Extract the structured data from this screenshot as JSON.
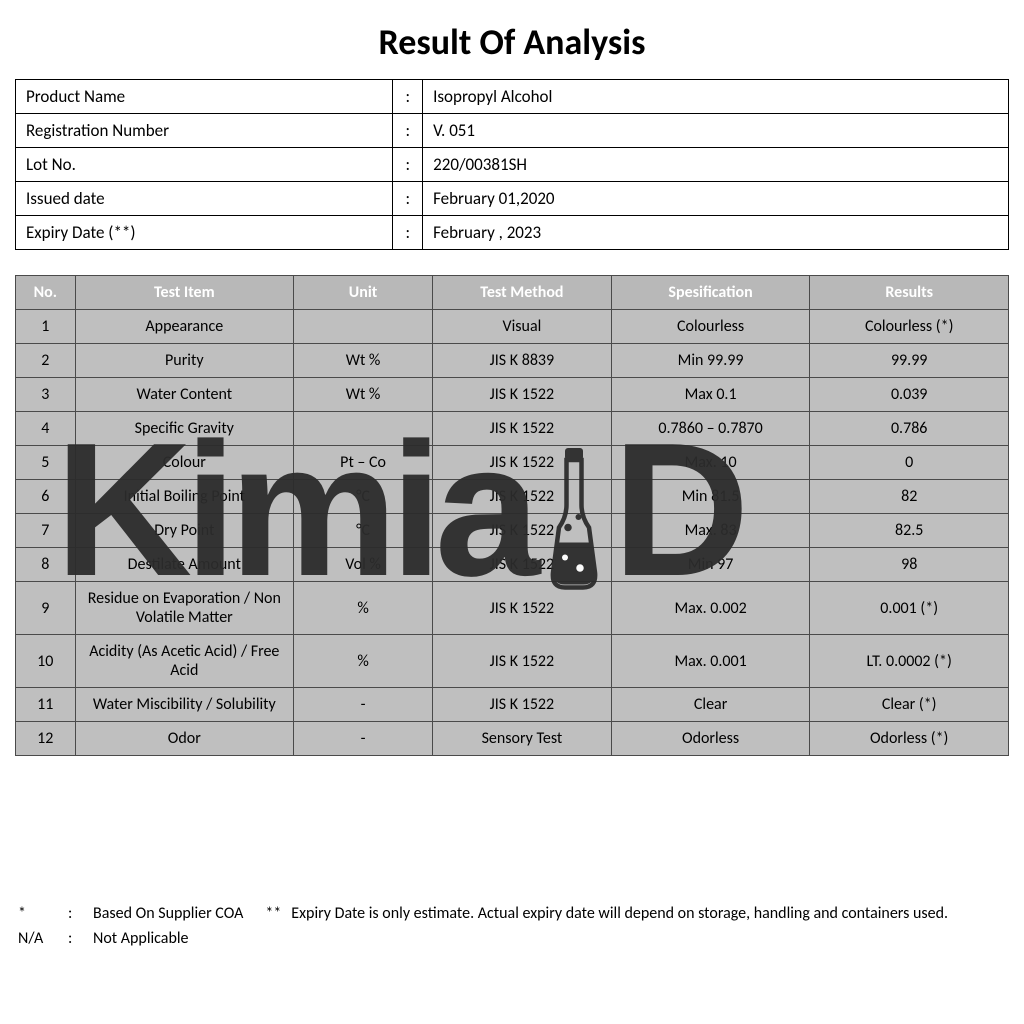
{
  "title": "Result Of Analysis",
  "info": {
    "rows": [
      {
        "label": "Product Name",
        "value": "Isopropyl Alcohol"
      },
      {
        "label": "Registration Number",
        "value": "V. 051"
      },
      {
        "label": "Lot No.",
        "value": "220/00381SH"
      },
      {
        "label": "Issued date",
        "value": "February 01,2020"
      },
      {
        "label": "Expiry Date (**)",
        "value": "February , 2023"
      }
    ]
  },
  "table": {
    "headers": {
      "no": "No.",
      "item": "Test Item",
      "unit": "Unit",
      "method": "Test Method",
      "spec": "Spesification",
      "result": "Results"
    },
    "rows": [
      {
        "no": "1",
        "item": "Appearance",
        "unit": "",
        "method": "Visual",
        "spec": "Colourless",
        "result": "Colourless (*)"
      },
      {
        "no": "2",
        "item": "Purity",
        "unit": "Wt %",
        "method": "JIS K 8839",
        "spec": "Min 99.99",
        "result": "99.99"
      },
      {
        "no": "3",
        "item": "Water Content",
        "unit": "Wt %",
        "method": "JIS K 1522",
        "spec": "Max 0.1",
        "result": "0.039"
      },
      {
        "no": "4",
        "item": "Specific Gravity",
        "unit": "",
        "method": "JIS K 1522",
        "spec": "0.7860 – 0.7870",
        "result": "0.786"
      },
      {
        "no": "5",
        "item": "Colour",
        "unit": "Pt – Co",
        "method": "JIS K 1522",
        "spec": "Max. 10",
        "result": "0"
      },
      {
        "no": "6",
        "item": "Initial Boiling Point",
        "unit": "°C",
        "method": "JIS K 1522",
        "spec": "Min 81.5",
        "result": "82"
      },
      {
        "no": "7",
        "item": "Dry Point",
        "unit": "°C",
        "method": "JIS K 1522",
        "spec": "Max. 83",
        "result": "82.5"
      },
      {
        "no": "8",
        "item": "Destilate Amount",
        "unit": "Vol %",
        "method": "JIS K 1522",
        "spec": "Min 97",
        "result": "98"
      },
      {
        "no": "9",
        "item": "Residue on Evaporation / Non Volatile Matter",
        "unit": "%",
        "method": "JIS K 1522",
        "spec": "Max. 0.002",
        "result": "0.001 (*)"
      },
      {
        "no": "10",
        "item": "Acidity (As Acetic Acid) / Free Acid",
        "unit": "%",
        "method": "JIS K 1522",
        "spec": "Max. 0.001",
        "result": "LT. 0.0002 (*)"
      },
      {
        "no": "11",
        "item": "Water Miscibility / Solubility",
        "unit": "-",
        "method": "JIS K 1522",
        "spec": "Clear",
        "result": "Clear (*)"
      },
      {
        "no": "12",
        "item": "Odor",
        "unit": "-",
        "method": "Sensory Test",
        "spec": "Odorless",
        "result": "Odorless (*)"
      }
    ]
  },
  "footnotes": {
    "star": {
      "sym": "*",
      "txt": "Based On Supplier COA"
    },
    "dstar": {
      "sym": "**",
      "txt": "Expiry Date is only estimate. Actual expiry date will depend on storage, handling and containers used."
    },
    "na": {
      "sym": "N/A",
      "txt": "Not Applicable"
    }
  },
  "watermark": {
    "text_left": "Kimia",
    "text_right": "D",
    "color": "#2c2c2c"
  },
  "styles": {
    "header_bg": "#b8b8b8",
    "header_fg": "#ffffff",
    "cell_bg": "#bfbfbf",
    "border": "#4a4a4a",
    "title_fontsize": 36,
    "body_fontsize": 16
  }
}
